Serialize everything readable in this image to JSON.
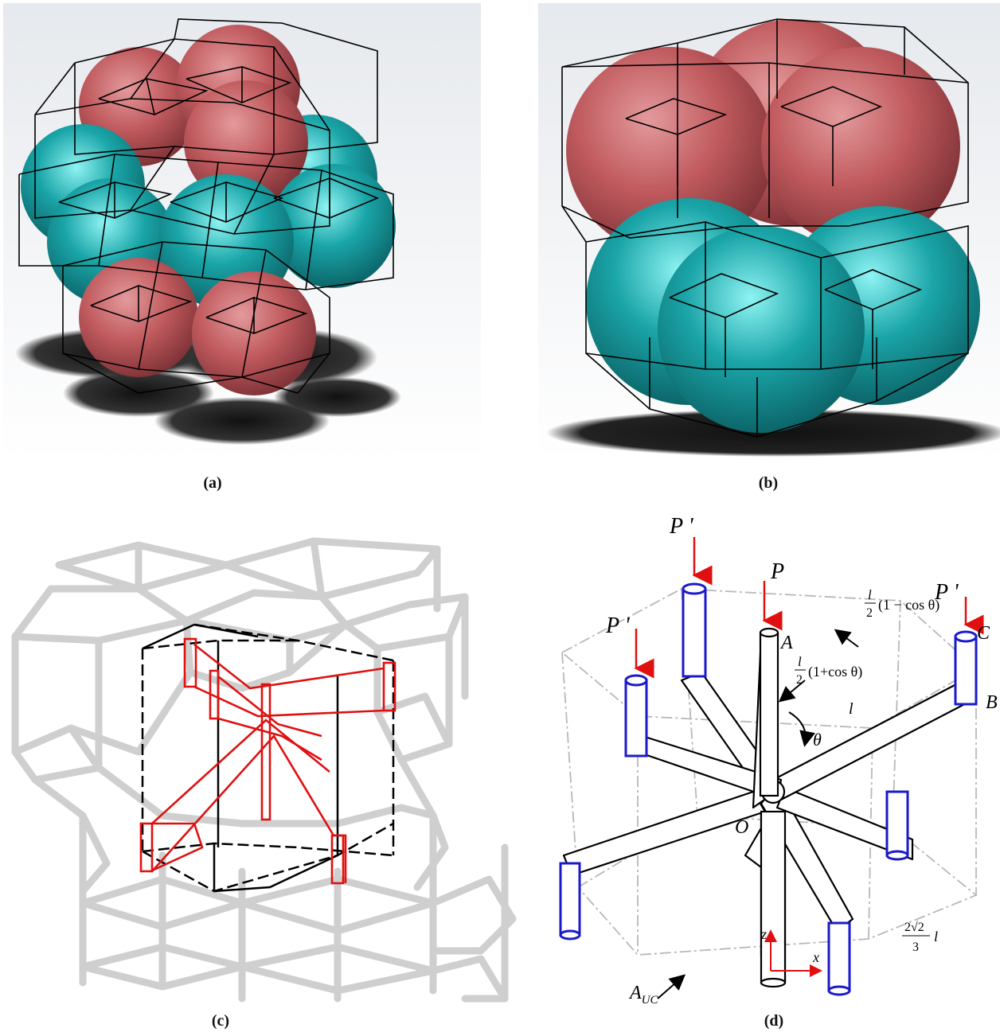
{
  "captions": {
    "a": "(a)",
    "b": "(b)",
    "c": "(c)",
    "d": "(d)"
  },
  "labels": {
    "P_prime": "P '",
    "P": "P",
    "A": "A",
    "B": "B",
    "C": "C",
    "O": "O",
    "theta": "θ",
    "l": "l",
    "z": "z",
    "x": "x",
    "A_uc_main": "A",
    "A_uc_sub": "UC",
    "half_l_plus_num": "l",
    "half_l_plus_den": "2",
    "half_l_plus_expr": "(1+cos θ)",
    "half_l_minus_num": "l",
    "half_l_minus_den": "2",
    "half_l_minus_expr": "(1 − cos θ)",
    "dim_num": "2√2",
    "dim_den": "3",
    "dim_var": "l"
  },
  "colors": {
    "sphere_red": "#c05a5e",
    "sphere_teal": "#1a9a9e",
    "lattice_gray": "#cfcfcf",
    "highlight_red": "#e01010",
    "strut_blue": "#1a1acc",
    "arrow_red": "#e01010"
  }
}
